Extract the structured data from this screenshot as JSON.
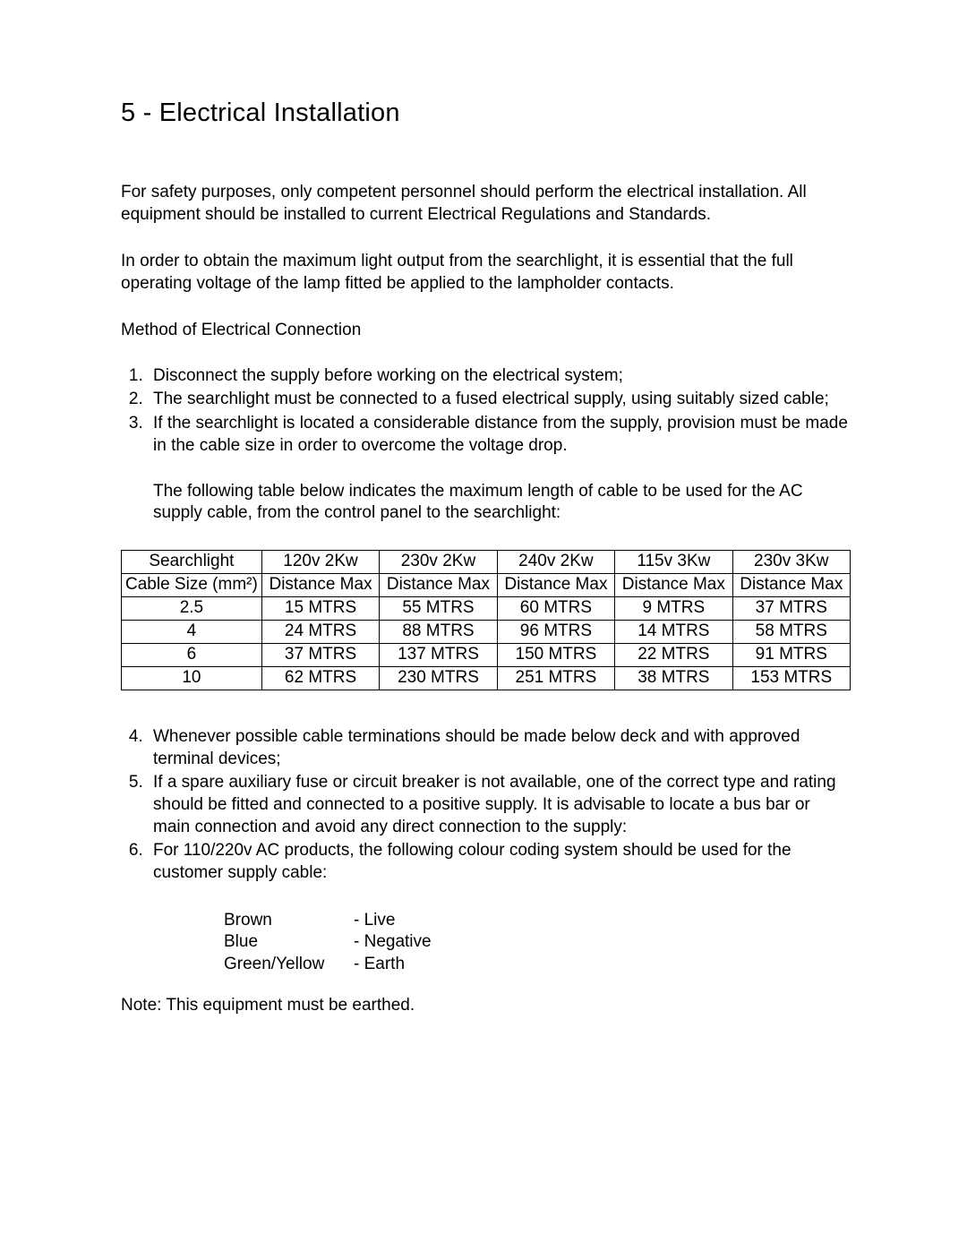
{
  "title": "5 - Electrical Installation",
  "para1": "For safety purposes, only competent personnel should perform the electrical installation. All equipment should be installed to current Electrical Regulations and Standards.",
  "para2": "In order to obtain the maximum light output from the searchlight, it is essential that the full operating voltage of the lamp fitted be applied to the lampholder contacts.",
  "subhead": "Method of Electrical Connection",
  "list_a": [
    "Disconnect the supply before working on the electrical system;",
    "The searchlight must be connected to a fused electrical supply, using suitably sized cable;",
    "If the searchlight is located a considerable distance from the supply, provision must be made in the cable size in order to overcome the voltage drop."
  ],
  "table_intro": "The following table below indicates the maximum length of cable to be used for the AC supply cable, from the control panel to the searchlight:",
  "table": {
    "header1": [
      "Searchlight",
      "120v 2Kw",
      "230v 2Kw",
      "240v 2Kw",
      "115v 3Kw",
      "230v 3Kw"
    ],
    "header2": [
      "Cable Size (mm²)",
      "Distance Max",
      "Distance Max",
      "Distance Max",
      "Distance Max",
      "Distance Max"
    ],
    "rows": [
      [
        "2.5",
        "15 MTRS",
        "55 MTRS",
        "60 MTRS",
        "9 MTRS",
        "37 MTRS"
      ],
      [
        "4",
        "24 MTRS",
        "88 MTRS",
        "96 MTRS",
        "14 MTRS",
        "58 MTRS"
      ],
      [
        "6",
        "37 MTRS",
        "137 MTRS",
        "150 MTRS",
        "22 MTRS",
        "91 MTRS"
      ],
      [
        "10",
        "62 MTRS",
        "230 MTRS",
        "251 MTRS",
        "38 MTRS",
        "153 MTRS"
      ]
    ]
  },
  "list_b": [
    "Whenever possible cable terminations should be made below deck and with approved terminal devices;",
    "If a spare auxiliary fuse or circuit breaker is not available, one of the correct type and rating should be fitted and connected to a positive supply. It is advisable to locate a bus bar or main connection and avoid any direct connection to the supply:",
    "For 110/220v AC products, the following colour coding system should be used for the customer supply cable:"
  ],
  "colour_rows": [
    {
      "colour": "Brown",
      "meaning": "- Live"
    },
    {
      "colour": "Blue",
      "meaning": "- Negative"
    },
    {
      "colour": "Green/Yellow",
      "meaning": "- Earth"
    }
  ],
  "note": "Note: This equipment must be earthed."
}
